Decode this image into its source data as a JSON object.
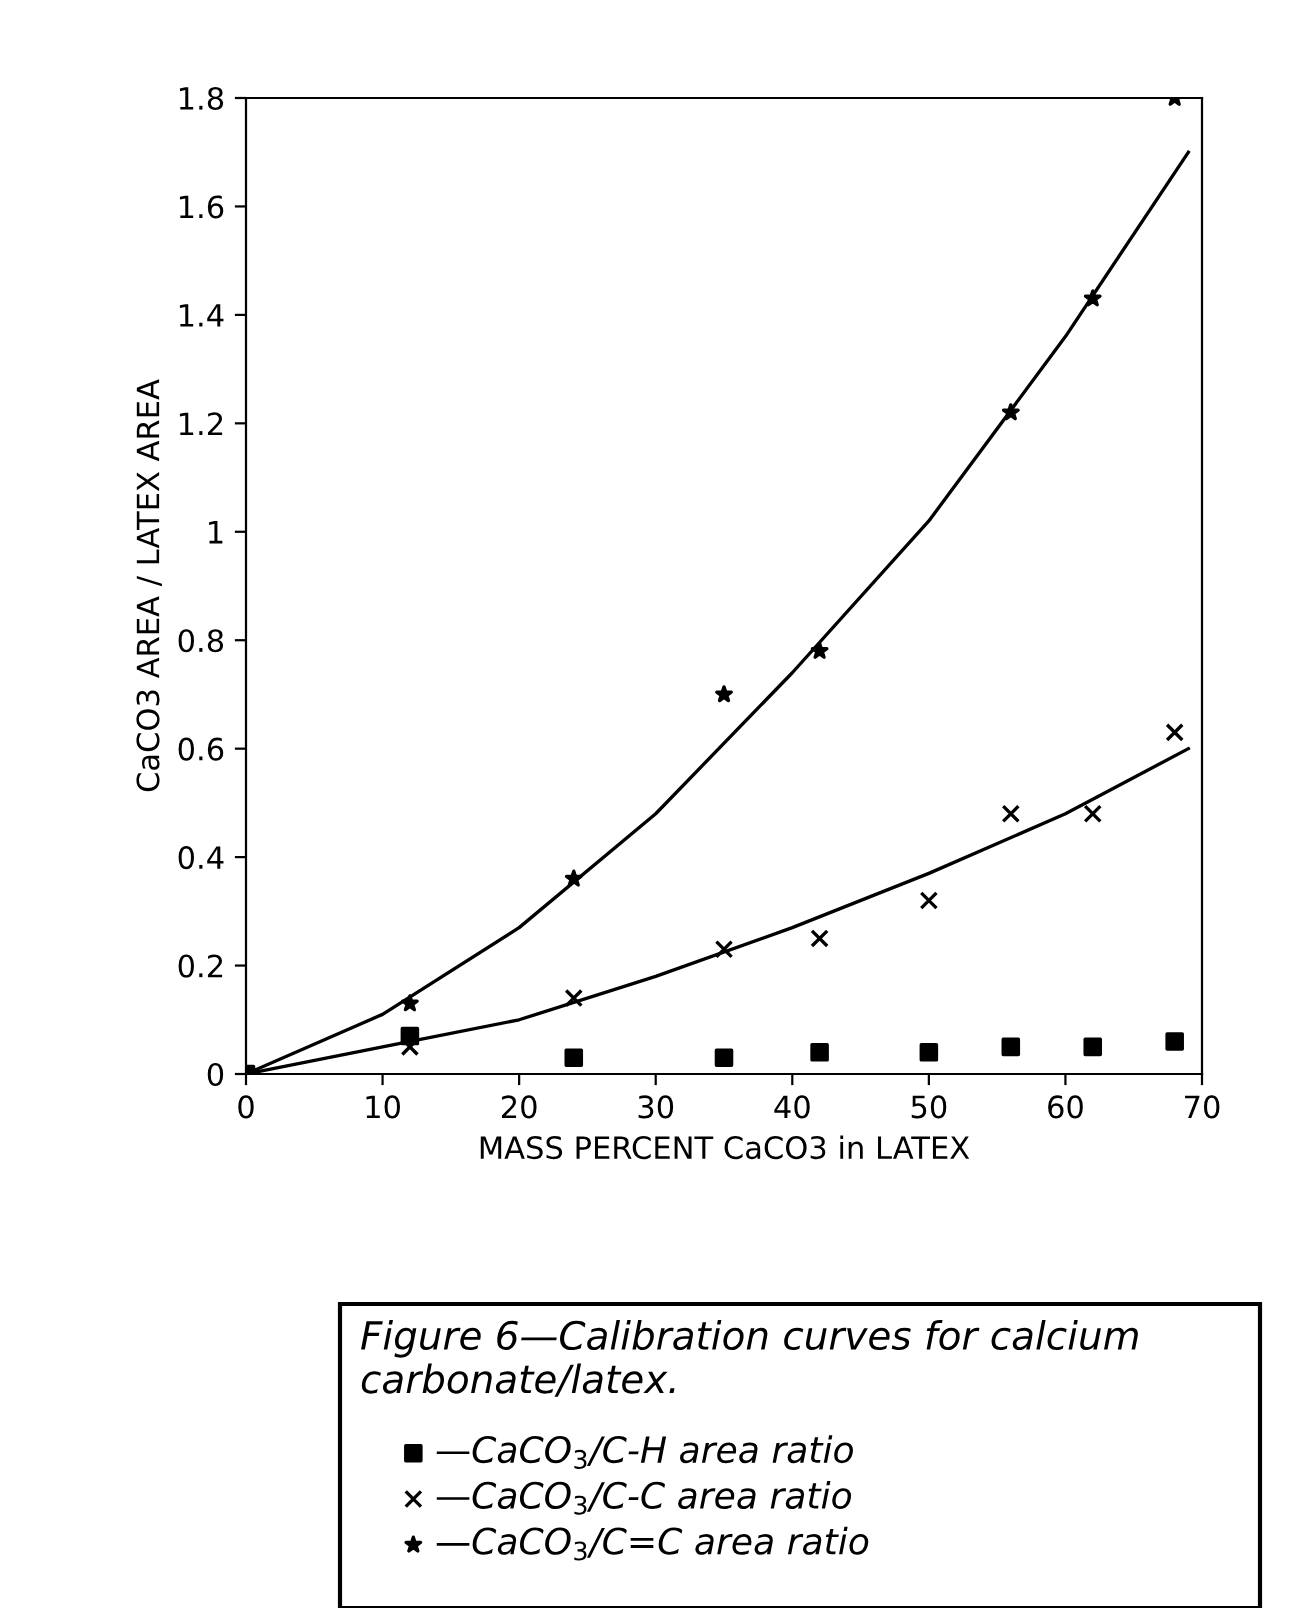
{
  "chart_data": {
    "type": "scatter",
    "xlabel": "MASS PERCENT CaCO3 in LATEX",
    "ylabel": "CaCO3 AREA / LATEX AREA",
    "annotations": [
      "Figure 6—Calibration curves for calcium carbonate/latex."
    ],
    "xlim": [
      0,
      70
    ],
    "xticks": [
      0,
      10,
      20,
      30,
      40,
      50,
      60,
      70
    ],
    "ylim": [
      0,
      1.8
    ],
    "yticks": [
      0,
      0.2,
      0.4,
      0.6,
      0.8,
      {
        "value": 1.0,
        "label": "1"
      },
      1.2,
      1.4,
      1.6,
      1.8
    ],
    "grid": false,
    "legend": "bottom",
    "series": [
      {
        "name": "—CaCO$_{3}$/C-H area ratio",
        "marker": "square",
        "color": "#000000",
        "x": [
          0,
          12,
          24,
          35,
          42,
          50,
          56,
          62,
          68
        ],
        "values": [
          0,
          0.07,
          0.03,
          0.03,
          0.04,
          0.04,
          0.05,
          0.05,
          0.06
        ]
      },
      {
        "name": "—CaCO$_{3}$/C-C area ratio",
        "marker": "cross",
        "color": "#000000",
        "x": [
          12,
          24,
          35,
          42,
          50,
          56,
          62,
          68
        ],
        "values": [
          0.05,
          0.14,
          0.23,
          0.25,
          0.32,
          0.48,
          0.48,
          0.63
        ]
      },
      {
        "name": "—CaCO$_{3}$/C=C area ratio",
        "marker": "star",
        "color": "#000000",
        "x": [
          12,
          24,
          35,
          42,
          56,
          62,
          68
        ],
        "values": [
          0.13,
          0.36,
          0.7,
          0.78,
          1.22,
          1.43,
          1.8
        ]
      },
      {
        "type": "line",
        "marker": "none",
        "line_style": "solid",
        "color": "#000000",
        "x": [
          0,
          10,
          20,
          30,
          40,
          50,
          60,
          69
        ],
        "values": [
          0,
          0.05,
          0.1,
          0.18,
          0.27,
          0.37,
          0.48,
          0.6
        ]
      },
      {
        "type": "line",
        "marker": "none",
        "line_style": "solid",
        "color": "#000000",
        "x": [
          0,
          10,
          20,
          30,
          40,
          50,
          60,
          69
        ],
        "values": [
          0,
          0.11,
          0.27,
          0.48,
          0.74,
          1.02,
          1.36,
          1.7
        ]
      }
    ]
  }
}
